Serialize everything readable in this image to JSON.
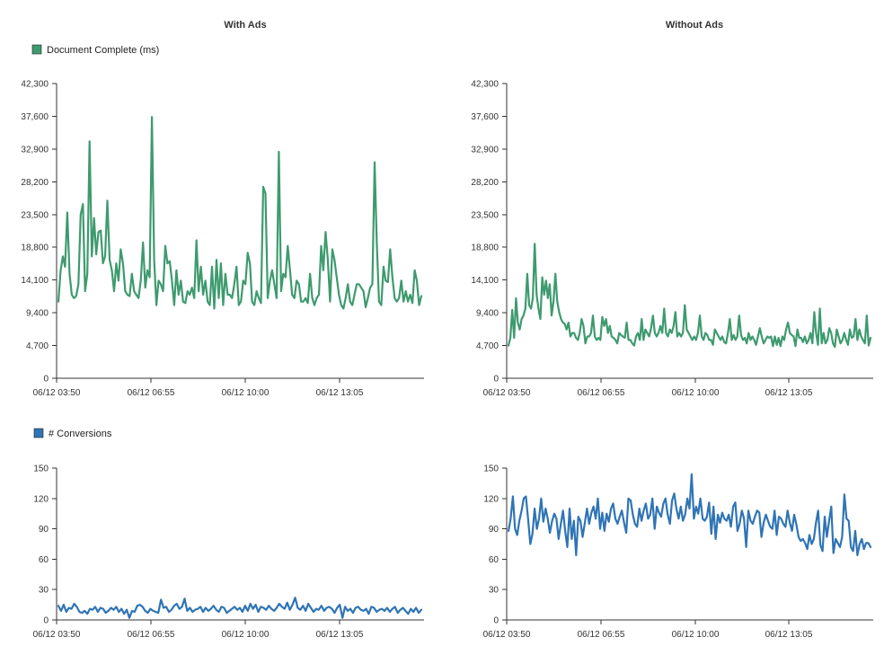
{
  "titles": {
    "left": "With Ads",
    "right": "Without Ads"
  },
  "legends": {
    "top": {
      "label": "Document Complete (ms)",
      "color": "#3e9a6f"
    },
    "bottom": {
      "label": "# Conversions",
      "color": "#2f74b5"
    }
  },
  "chart_data": [
    {
      "id": "doc-with-ads",
      "type": "line",
      "title": "With Ads",
      "series_label": "Document Complete (ms)",
      "color": "#3e9a6f",
      "ylim": [
        0,
        42300
      ],
      "yticks": [
        "0",
        "4,700",
        "9,400",
        "14,100",
        "18,800",
        "23,500",
        "28,200",
        "32,900",
        "37,600",
        "42,300"
      ],
      "xticks": [
        "06/12 03:50",
        "06/12 06:55",
        "06/12 10:00",
        "06/12 13:05"
      ],
      "values": [
        11000,
        15500,
        17500,
        16000,
        23800,
        15000,
        12000,
        11500,
        11800,
        13500,
        23500,
        25000,
        12500,
        15000,
        34000,
        17500,
        23000,
        17800,
        21000,
        21200,
        16500,
        17500,
        25500,
        17000,
        15500,
        12500,
        16500,
        14000,
        18500,
        16500,
        12500,
        12000,
        11800,
        15000,
        12500,
        12000,
        11500,
        14000,
        19500,
        13000,
        15500,
        14500,
        37500,
        17000,
        10500,
        14000,
        13500,
        12500,
        19000,
        16500,
        16800,
        14000,
        10500,
        15500,
        12000,
        14000,
        11000,
        10800,
        12500,
        12000,
        13000,
        11500,
        19800,
        12500,
        16000,
        12000,
        14000,
        11000,
        10500,
        16000,
        10000,
        17000,
        11500,
        16500,
        10500,
        15000,
        12000,
        12000,
        11500,
        13500,
        16000,
        10500,
        11000,
        14000,
        13500,
        18000,
        16500,
        11000,
        10500,
        12500,
        11500,
        10800,
        27500,
        26500,
        11500,
        14000,
        15500,
        13500,
        11500,
        32500,
        12500,
        15000,
        14500,
        19000,
        15500,
        12000,
        11500,
        14000,
        13500,
        11000,
        11000,
        11500,
        10800,
        15000,
        11500,
        10500,
        11500,
        12000,
        19000,
        15500,
        21000,
        17000,
        11000,
        18500,
        17000,
        14500,
        12000,
        10500,
        10000,
        11500,
        13500,
        11000,
        10500,
        12000,
        13500,
        13500,
        13000,
        12500,
        10200,
        11500,
        13000,
        13500,
        31000,
        19500,
        11000,
        10500,
        16000,
        14000,
        13800,
        18500,
        14500,
        11500,
        11000,
        11500,
        14000,
        11000,
        12500,
        11000,
        12000,
        10800,
        15500,
        14000,
        10500,
        11800
      ],
      "xlabel": "",
      "ylabel": ""
    },
    {
      "id": "doc-without-ads",
      "type": "line",
      "title": "Without Ads",
      "series_label": "Document Complete (ms)",
      "color": "#3e9a6f",
      "ylim": [
        0,
        42300
      ],
      "yticks": [
        "0",
        "4,700",
        "9,400",
        "14,100",
        "18,800",
        "23,500",
        "28,200",
        "32,900",
        "37,600",
        "42,300"
      ],
      "xticks": [
        "06/12 03:50",
        "06/12 06:55",
        "06/12 10:00",
        "06/12 13:05"
      ],
      "values": [
        4700,
        5800,
        9800,
        5800,
        11500,
        8000,
        7000,
        8500,
        9000,
        10000,
        15000,
        10500,
        10000,
        11500,
        19300,
        12000,
        10000,
        8500,
        14500,
        12000,
        14000,
        11500,
        13500,
        9000,
        11000,
        15000,
        11000,
        9500,
        8500,
        8000,
        7800,
        7000,
        8000,
        6000,
        6500,
        6500,
        5800,
        5500,
        6500,
        8500,
        7500,
        5000,
        6000,
        6000,
        6500,
        9000,
        6000,
        5500,
        5800,
        5500,
        8800,
        7500,
        8500,
        6500,
        7500,
        6000,
        5800,
        5500,
        5000,
        6500,
        6200,
        6000,
        5800,
        8000,
        5500,
        5500,
        5000,
        4700,
        6000,
        6500,
        5500,
        8500,
        5500,
        7000,
        6500,
        6000,
        7200,
        9000,
        6500,
        6000,
        6500,
        7500,
        6500,
        10000,
        6500,
        6000,
        7000,
        6500,
        7500,
        9500,
        6000,
        6500,
        6000,
        6500,
        10500,
        7000,
        6500,
        6000,
        5500,
        6000,
        5500,
        6500,
        9000,
        6000,
        5500,
        6500,
        6200,
        5500,
        5500,
        4800,
        7000,
        6500,
        6000,
        5500,
        6000,
        5200,
        5000,
        6500,
        8500,
        5500,
        6200,
        5500,
        6000,
        9000,
        6200,
        5500,
        5800,
        5000,
        6500,
        5500,
        6000,
        5500,
        4800,
        6000,
        7200,
        6000,
        5000,
        5500,
        6000,
        5800,
        6000,
        4600,
        6000,
        4800,
        5800,
        4600,
        6000,
        5500,
        7000,
        8000,
        6500,
        6200,
        6000,
        4600,
        7000,
        5800,
        5800,
        5200,
        6000,
        5000,
        5500,
        6500,
        5000,
        9500,
        6500,
        4800,
        10000,
        5000,
        6500,
        5000,
        5500,
        7200,
        6500,
        5000,
        4500,
        7000,
        6000,
        5000,
        5500,
        6500,
        5500,
        4800,
        7000,
        5800,
        6000,
        8500,
        5500,
        7000,
        6000,
        5500,
        5000,
        9000,
        4700,
        5800
      ],
      "xlabel": "",
      "ylabel": ""
    },
    {
      "id": "conv-with-ads",
      "type": "line",
      "title": "",
      "series_label": "# Conversions",
      "color": "#2f74b5",
      "ylim": [
        0,
        150
      ],
      "yticks": [
        "0",
        "30",
        "60",
        "90",
        "120",
        "150"
      ],
      "xticks": [
        "06/12 03:50",
        "06/12 06:55",
        "06/12 10:00",
        "06/12 13:05"
      ],
      "values": [
        14,
        9,
        15,
        8,
        12,
        11,
        16,
        13,
        8,
        7,
        9,
        6,
        11,
        10,
        13,
        8,
        12,
        11,
        7,
        9,
        12,
        10,
        13,
        8,
        11,
        6,
        10,
        2,
        9,
        8,
        14,
        15,
        13,
        9,
        7,
        11,
        9,
        8,
        7,
        20,
        12,
        13,
        8,
        10,
        14,
        16,
        11,
        13,
        21,
        9,
        12,
        8,
        10,
        11,
        13,
        8,
        12,
        9,
        11,
        14,
        10,
        8,
        13,
        12,
        7,
        9,
        11,
        13,
        10,
        12,
        8,
        14,
        9,
        16,
        11,
        15,
        8,
        13,
        12,
        10,
        14,
        11,
        9,
        12,
        16,
        13,
        11,
        17,
        10,
        15,
        22,
        12,
        10,
        14,
        9,
        16,
        12,
        8,
        11,
        10,
        14,
        9,
        12,
        13,
        11,
        7,
        12,
        15,
        2,
        13,
        9,
        11,
        7,
        12,
        13,
        10,
        9,
        11,
        6,
        13,
        12,
        8,
        10,
        11,
        9,
        12,
        8,
        11,
        13,
        7,
        10,
        12,
        9,
        6,
        11,
        8,
        12,
        7,
        10
      ],
      "xlabel": "",
      "ylabel": ""
    },
    {
      "id": "conv-without-ads",
      "type": "line",
      "title": "",
      "series_label": "# Conversions",
      "color": "#2f74b5",
      "ylim": [
        0,
        150
      ],
      "yticks": [
        "0",
        "30",
        "60",
        "90",
        "120",
        "150"
      ],
      "xticks": [
        "06/12 03:50",
        "06/12 06:55",
        "06/12 10:00",
        "06/12 13:05"
      ],
      "values": [
        88,
        100,
        122,
        90,
        84,
        98,
        108,
        120,
        122,
        100,
        75,
        85,
        110,
        90,
        100,
        120,
        97,
        110,
        100,
        86,
        98,
        105,
        100,
        80,
        95,
        108,
        88,
        72,
        110,
        80,
        98,
        64,
        102,
        98,
        82,
        96,
        110,
        95,
        106,
        112,
        100,
        120,
        90,
        106,
        88,
        105,
        97,
        110,
        115,
        100,
        95,
        102,
        108,
        96,
        86,
        120,
        118,
        104,
        95,
        92,
        110,
        98,
        108,
        115,
        100,
        104,
        120,
        90,
        112,
        106,
        102,
        115,
        120,
        104,
        95,
        118,
        125,
        110,
        100,
        112,
        98,
        104,
        120,
        110,
        144,
        100,
        112,
        105,
        120,
        100,
        98,
        102,
        116,
        85,
        112,
        80,
        104,
        96,
        106,
        100,
        98,
        104,
        92,
        112,
        116,
        88,
        95,
        108,
        100,
        72,
        108,
        98,
        95,
        102,
        108,
        106,
        82,
        96,
        104,
        98,
        92,
        90,
        108,
        84,
        102,
        100,
        95,
        92,
        108,
        96,
        88,
        104,
        94,
        82,
        78,
        80,
        76,
        70,
        84,
        75,
        80,
        96,
        108,
        74,
        68,
        102,
        82,
        98,
        112,
        66,
        80,
        76,
        72,
        82,
        124,
        100,
        98,
        72,
        68,
        88,
        64,
        75,
        80,
        70,
        76,
        76,
        72
      ],
      "xlabel": "",
      "ylabel": ""
    }
  ]
}
